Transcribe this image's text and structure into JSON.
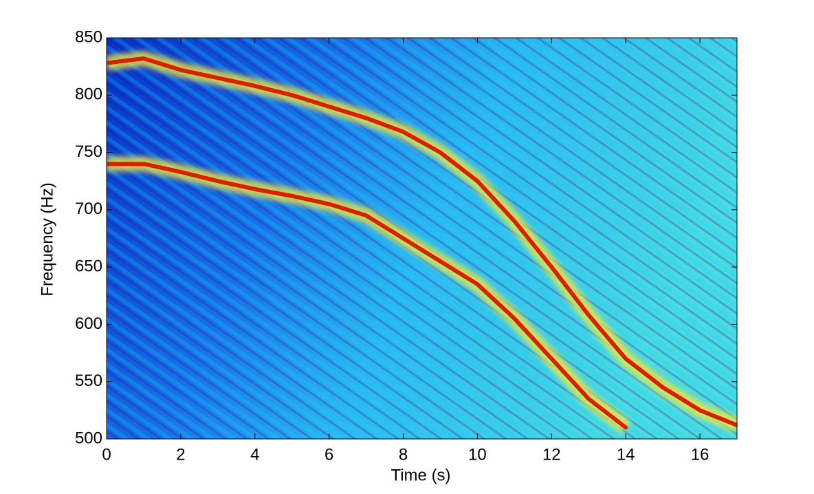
{
  "chart_data": {
    "type": "spectrogram",
    "xlabel": "Time (s)",
    "ylabel": "Frequency (Hz)",
    "xlim": [
      0,
      17
    ],
    "ylim": [
      500,
      850
    ],
    "xticks": [
      0,
      2,
      4,
      6,
      8,
      10,
      12,
      14,
      16
    ],
    "yticks": [
      500,
      550,
      600,
      650,
      700,
      750,
      800,
      850
    ],
    "x": [
      0,
      1,
      2,
      3,
      4,
      5,
      6,
      7,
      8,
      9,
      10,
      11,
      12,
      13,
      14,
      15,
      16,
      17
    ],
    "series": [
      {
        "color": "#d62000",
        "values": [
          828,
          832,
          822,
          815,
          808,
          800,
          790,
          780,
          768,
          750,
          725,
          690,
          650,
          608,
          570,
          545,
          525,
          512
        ]
      },
      {
        "color": "#d62000",
        "values": [
          740,
          740,
          733,
          725,
          718,
          712,
          705,
          695,
          675,
          655,
          635,
          605,
          570,
          535,
          510,
          null,
          null,
          null
        ]
      }
    ]
  }
}
